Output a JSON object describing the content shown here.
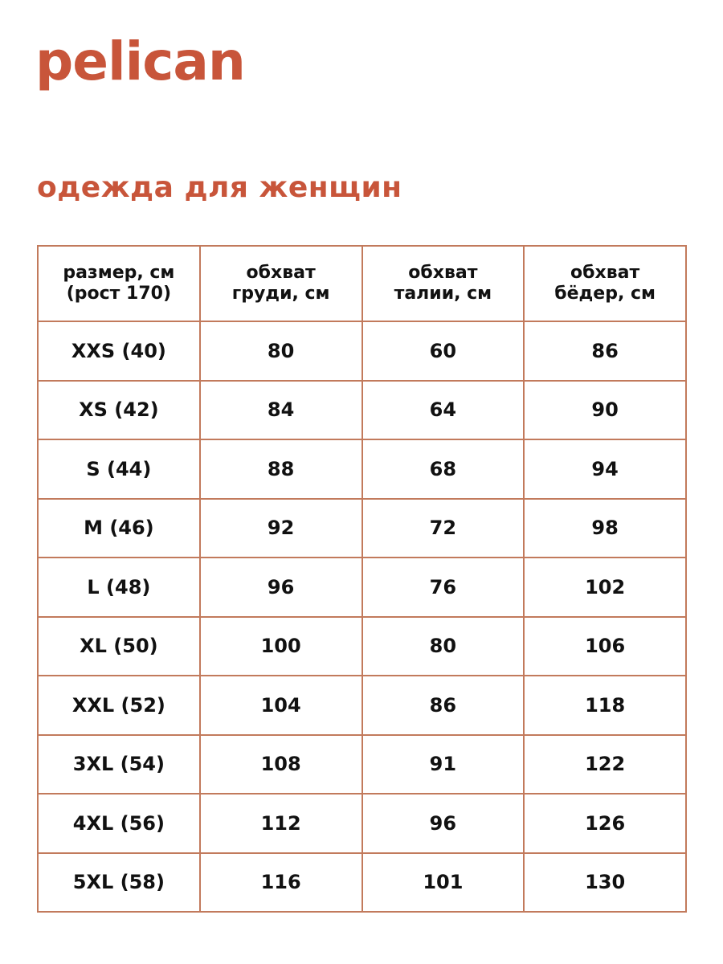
{
  "brand": {
    "logo_text": "pelican",
    "color": "#c8553a"
  },
  "title": "одежда для женщин",
  "table": {
    "headers": [
      [
        "размер, см",
        "(рост 170)"
      ],
      [
        "обхват",
        "груди, см"
      ],
      [
        "обхват",
        "талии, см"
      ],
      [
        "обхват",
        "бёдер, см"
      ]
    ],
    "rows": [
      [
        "XXS (40)",
        "80",
        "60",
        "86"
      ],
      [
        "XS (42)",
        "84",
        "64",
        "90"
      ],
      [
        "S (44)",
        "88",
        "68",
        "94"
      ],
      [
        "M (46)",
        "92",
        "72",
        "98"
      ],
      [
        "L (48)",
        "96",
        "76",
        "102"
      ],
      [
        "XL (50)",
        "100",
        "80",
        "106"
      ],
      [
        "XXL (52)",
        "104",
        "86",
        "118"
      ],
      [
        "3XL (54)",
        "108",
        "91",
        "122"
      ],
      [
        "4XL (56)",
        "112",
        "96",
        "126"
      ],
      [
        "5XL (58)",
        "116",
        "101",
        "130"
      ]
    ]
  }
}
